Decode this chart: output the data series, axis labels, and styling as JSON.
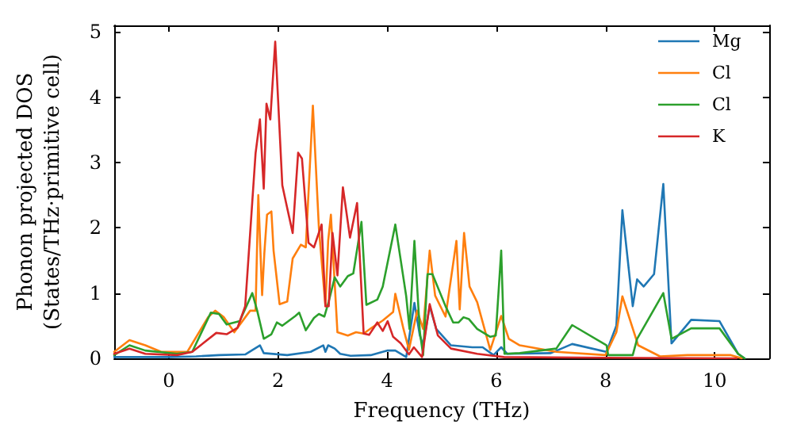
{
  "chart_data": {
    "type": "line",
    "xlabel": "Frequency (THz)",
    "ylabel": "Phonon projected DOS\n(States/THz·primitive cell)",
    "xlim": [
      -1,
      11
    ],
    "xticks": [
      0,
      2,
      4,
      6,
      8,
      10
    ],
    "ylim": [
      0,
      5.1
    ],
    "yticks": [
      0,
      1,
      2,
      3,
      4,
      5
    ],
    "grid": false,
    "legend": "top right",
    "marker": "none",
    "line_style": "solid",
    "series": [
      {
        "name": "Mg",
        "color": "#1f77b4",
        "x": [
          -1,
          -0.5,
          0,
          0.5,
          0.92,
          1.4,
          1.67,
          1.74,
          2.17,
          2.6,
          2.83,
          2.87,
          2.92,
          3.04,
          3.14,
          3.33,
          3.7,
          4.01,
          4.15,
          4.35,
          4.5,
          4.6,
          4.66,
          4.78,
          4.9,
          5.17,
          5.56,
          5.75,
          5.95,
          6.09,
          6.2,
          7.0,
          7.39,
          8.02,
          8.2,
          8.31,
          8.5,
          8.58,
          8.7,
          8.89,
          9.06,
          9.21,
          9.57,
          10.09,
          10.43,
          10.55
        ],
        "values": [
          0.02,
          0.02,
          0.02,
          0.03,
          0.05,
          0.06,
          0.2,
          0.08,
          0.05,
          0.1,
          0.2,
          0.1,
          0.2,
          0.15,
          0.07,
          0.04,
          0.05,
          0.12,
          0.12,
          0.02,
          0.85,
          0.35,
          0.2,
          0.8,
          0.45,
          0.2,
          0.17,
          0.17,
          0.05,
          0.17,
          0.07,
          0.08,
          0.22,
          0.1,
          0.5,
          2.27,
          0.8,
          1.21,
          1.1,
          1.29,
          2.67,
          0.23,
          0.59,
          0.57,
          0.07,
          0
        ]
      },
      {
        "name": "Cl",
        "color": "#ff7f0e",
        "x": [
          -1,
          -0.72,
          -0.43,
          -0.14,
          0.34,
          0.72,
          0.85,
          1.01,
          1.2,
          1.49,
          1.59,
          1.64,
          1.71,
          1.75,
          1.8,
          1.88,
          1.92,
          2.03,
          2.17,
          2.27,
          2.42,
          2.51,
          2.64,
          2.75,
          2.87,
          2.92,
          2.97,
          3.09,
          3.28,
          3.43,
          3.57,
          3.72,
          3.92,
          4.11,
          4.15,
          4.3,
          4.4,
          4.55,
          4.66,
          4.78,
          4.88,
          5.07,
          5.27,
          5.33,
          5.41,
          5.51,
          5.65,
          5.89,
          6.09,
          6.23,
          6.43,
          7.1,
          8.0,
          8.2,
          8.31,
          8.6,
          9.0,
          9.5,
          10.3,
          10.5
        ],
        "values": [
          0.1,
          0.28,
          0.2,
          0.1,
          0.1,
          0.63,
          0.73,
          0.63,
          0.4,
          0.73,
          0.73,
          2.5,
          0.97,
          1.6,
          2.2,
          2.25,
          1.65,
          0.83,
          0.87,
          1.53,
          1.74,
          1.7,
          3.87,
          2.0,
          0.8,
          1.8,
          2.2,
          0.4,
          0.35,
          0.4,
          0.38,
          0.47,
          0.58,
          0.71,
          0.99,
          0.45,
          0.13,
          0.73,
          0.45,
          1.65,
          0.96,
          0.64,
          1.8,
          0.75,
          1.92,
          1.1,
          0.86,
          0.13,
          0.65,
          0.3,
          0.2,
          0.1,
          0.05,
          0.4,
          0.95,
          0.2,
          0.03,
          0.05,
          0.05,
          0
        ]
      },
      {
        "name": "Cl",
        "color": "#2ca02c",
        "x": [
          -1,
          -0.72,
          -0.43,
          0.15,
          0.43,
          0.77,
          0.92,
          1.06,
          1.3,
          1.53,
          1.62,
          1.74,
          1.88,
          1.98,
          2.08,
          2.32,
          2.39,
          2.51,
          2.66,
          2.75,
          2.85,
          2.93,
          3.04,
          3.14,
          3.28,
          3.38,
          3.53,
          3.62,
          3.82,
          3.92,
          4.15,
          4.35,
          4.41,
          4.5,
          4.6,
          4.66,
          4.74,
          4.83,
          5.07,
          5.21,
          5.31,
          5.4,
          5.5,
          5.65,
          5.89,
          5.99,
          6.09,
          6.15,
          6.43,
          7.1,
          7.39,
          8.02,
          8.05,
          8.5,
          8.58,
          9.06,
          9.21,
          9.57,
          10.09,
          10.43,
          10.55
        ],
        "values": [
          0.05,
          0.2,
          0.12,
          0.07,
          0.1,
          0.7,
          0.68,
          0.52,
          0.57,
          1.0,
          0.73,
          0.3,
          0.37,
          0.55,
          0.5,
          0.65,
          0.7,
          0.43,
          0.62,
          0.68,
          0.64,
          0.87,
          1.24,
          1.1,
          1.26,
          1.3,
          2.09,
          0.82,
          0.9,
          1.1,
          2.05,
          0.95,
          0.45,
          1.8,
          0.4,
          0.05,
          1.29,
          1.29,
          0.8,
          0.55,
          0.55,
          0.63,
          0.6,
          0.45,
          0.33,
          0.35,
          1.65,
          0.07,
          0.08,
          0.15,
          0.51,
          0.2,
          0.05,
          0.05,
          0.3,
          1.0,
          0.3,
          0.46,
          0.46,
          0.07,
          0
        ]
      },
      {
        "name": "K",
        "color": "#d62728",
        "x": [
          -1,
          -0.72,
          -0.43,
          0.15,
          0.43,
          0.87,
          1.06,
          1.26,
          1.4,
          1.59,
          1.67,
          1.74,
          1.79,
          1.86,
          1.95,
          2.08,
          2.17,
          2.27,
          2.37,
          2.44,
          2.56,
          2.66,
          2.8,
          2.87,
          2.93,
          3.0,
          3.09,
          3.19,
          3.32,
          3.45,
          3.57,
          3.67,
          3.82,
          3.92,
          4.01,
          4.11,
          4.25,
          4.4,
          4.49,
          4.64,
          4.78,
          4.93,
          5.17,
          5.65,
          6.14,
          8.0,
          10.4
        ],
        "values": [
          0.07,
          0.15,
          0.07,
          0.05,
          0.1,
          0.39,
          0.37,
          0.47,
          0.8,
          3.14,
          3.66,
          2.6,
          3.9,
          3.66,
          4.85,
          2.65,
          2.3,
          1.92,
          3.15,
          3.06,
          1.77,
          1.7,
          2.05,
          0.8,
          0.8,
          1.92,
          1.27,
          2.62,
          1.85,
          2.38,
          0.38,
          0.36,
          0.55,
          0.42,
          0.57,
          0.33,
          0.23,
          0.06,
          0.17,
          0.02,
          0.83,
          0.35,
          0.15,
          0.07,
          0.02,
          0.01,
          0
        ]
      }
    ]
  }
}
